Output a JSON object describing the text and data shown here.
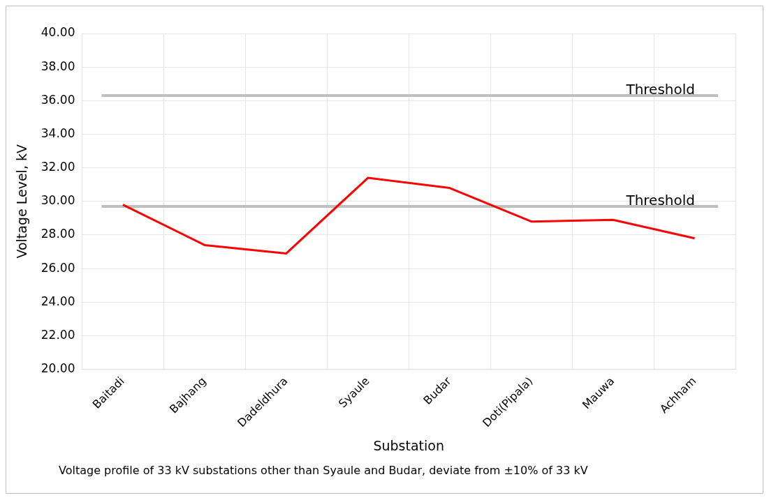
{
  "chart_data": {
    "type": "line",
    "xlabel": "Substation",
    "ylabel": "Voltage Level, kV",
    "categories": [
      "Baitadi",
      "Bajhang",
      "Dadeldhura",
      "Syaule",
      "Budar",
      "Doti(Pipala)",
      "Mauwa",
      "Achham"
    ],
    "series": [
      {
        "color": "#ff0000",
        "values": [
          29.8,
          27.4,
          26.9,
          31.4,
          30.8,
          28.8,
          28.9,
          27.8
        ]
      }
    ],
    "ylim": [
      20,
      40
    ],
    "yticks": [
      {
        "value": 20,
        "label": "20.00"
      },
      {
        "value": 22,
        "label": "22.00"
      },
      {
        "value": 24,
        "label": "24.00"
      },
      {
        "value": 26,
        "label": "26.00"
      },
      {
        "value": 28,
        "label": "28.00"
      },
      {
        "value": 30,
        "label": "30.00"
      },
      {
        "value": 32,
        "label": "32.00"
      },
      {
        "value": 34,
        "label": "34.00"
      },
      {
        "value": 36,
        "label": "36.00"
      },
      {
        "value": 38,
        "label": "38.00"
      },
      {
        "value": 40,
        "label": "40.00"
      }
    ],
    "ref_lines": [
      {
        "axis": "y",
        "value": 36.3,
        "label": "Threshold",
        "color": "#bfbfbf"
      },
      {
        "axis": "y",
        "value": 29.7,
        "label": "Threshold",
        "color": "#bfbfbf"
      }
    ],
    "grid": true,
    "legend": false,
    "marker": "none",
    "line_style": "solid",
    "annotations": [
      "Voltage profile of 33 kV substations other than Syaule and Budar, deviate from ±10% of 33 kV"
    ]
  }
}
